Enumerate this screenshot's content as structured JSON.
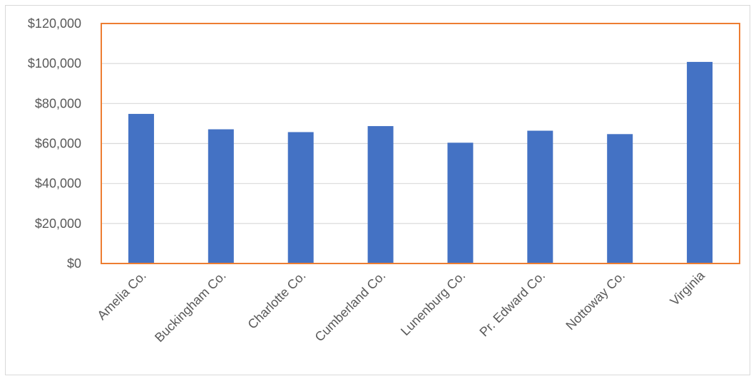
{
  "chart_data": {
    "type": "bar",
    "title": "",
    "xlabel": "",
    "ylabel": "",
    "categories": [
      "Amelia Co.",
      "Buckingham Co.",
      "Charlotte Co.",
      "Cumberland Co.",
      "Lunenburg Co.",
      "Pr. Edward Co.",
      "Nottoway Co.",
      "Virginia"
    ],
    "values": [
      74800,
      67100,
      65700,
      68700,
      60400,
      66400,
      64700,
      100800
    ],
    "ylim": [
      0,
      120000
    ],
    "yticks": [
      0,
      20000,
      40000,
      60000,
      80000,
      100000,
      120000
    ],
    "ytick_labels": [
      "$0",
      "$20,000",
      "$40,000",
      "$60,000",
      "$80,000",
      "$100,000",
      "$120,000"
    ],
    "grid": true,
    "legend": "none",
    "colors": {
      "bar": "#4472c4",
      "plot_border": "#ed7d31",
      "grid": "#d9d9d9",
      "text": "#595959"
    }
  }
}
